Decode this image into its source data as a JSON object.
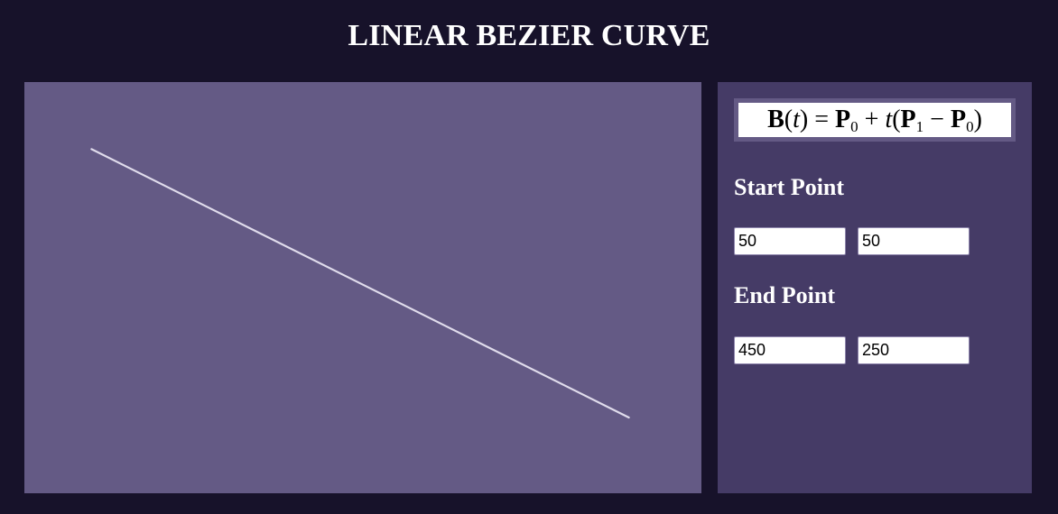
{
  "title": "LINEAR BEZIER CURVE",
  "formula": {
    "B": "B",
    "t1": "t",
    "eq": " = ",
    "P0a": "P",
    "sub0a": "0",
    "plus": " + ",
    "t2": "t",
    "open": "(",
    "P1": "P",
    "sub1": "1",
    "minus": " − ",
    "P0b": "P",
    "sub0b": "0",
    "close": ")"
  },
  "start_point": {
    "label": "Start Point",
    "x": "50",
    "y": "50"
  },
  "end_point": {
    "label": "End Point",
    "x": "450",
    "y": "250"
  },
  "colors": {
    "page_background": "#17122a",
    "canvas_background": "#645a85",
    "panel_background": "#453b66",
    "curve": "#e0dcec"
  }
}
